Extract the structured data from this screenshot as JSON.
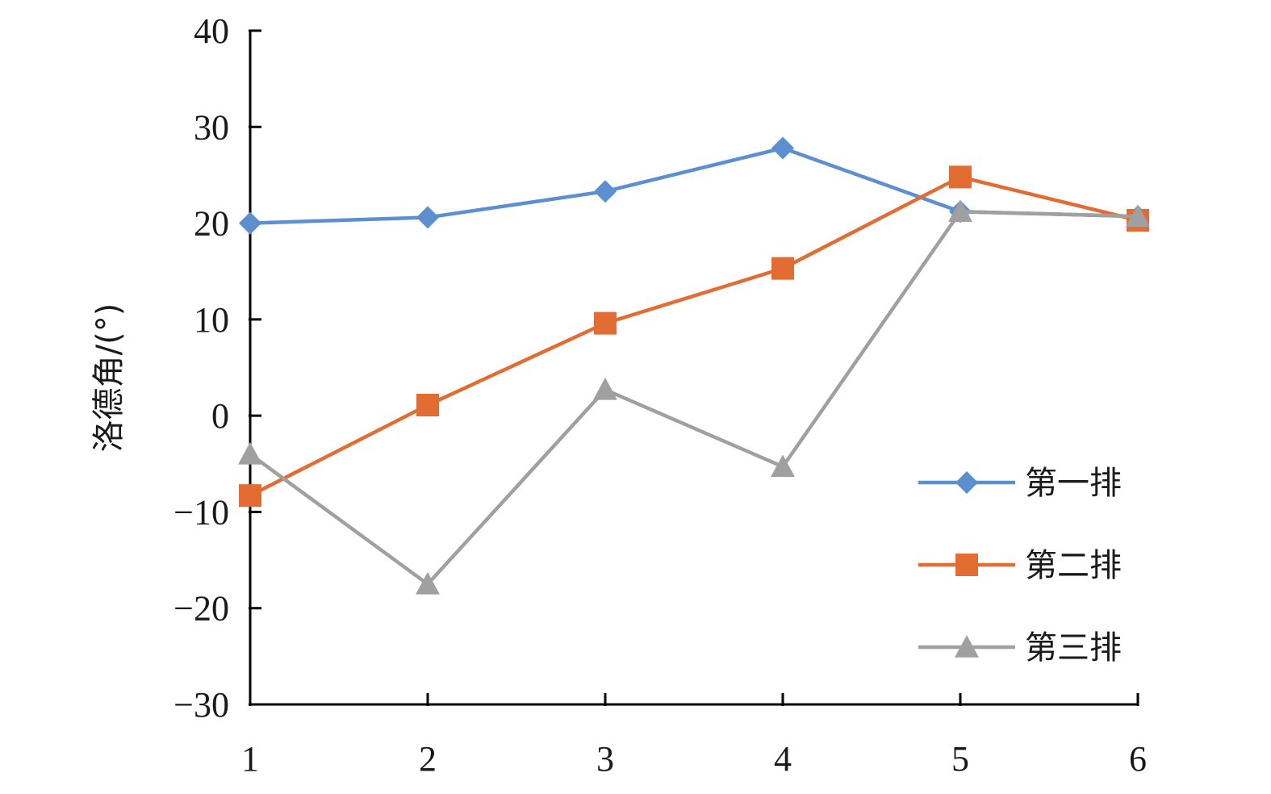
{
  "chart_data": {
    "type": "line",
    "x": [
      1,
      2,
      3,
      4,
      5,
      6
    ],
    "xlabel": "",
    "ylabel": "洛德角/(°)",
    "xlim": [
      1,
      6
    ],
    "ylim": [
      -30,
      40
    ],
    "yticks": [
      -30,
      -20,
      -10,
      0,
      10,
      20,
      30,
      40
    ],
    "ytick_labels": [
      "−30",
      "−20",
      "−10",
      "0",
      "10",
      "20",
      "30",
      "40"
    ],
    "xtick_labels": [
      "1",
      "2",
      "3",
      "4",
      "5",
      "6"
    ],
    "grid": false,
    "legend_position": "bottom-right",
    "series": [
      {
        "name": "第一排",
        "color": "#5b8fd0",
        "marker": "diamond",
        "values": [
          20.0,
          20.6,
          23.3,
          27.8,
          21.2,
          20.7
        ]
      },
      {
        "name": "第二排",
        "color": "#e36c32",
        "marker": "square",
        "values": [
          -8.3,
          1.1,
          9.6,
          15.3,
          24.8,
          20.3
        ]
      },
      {
        "name": "第三排",
        "color": "#a0a0a0",
        "marker": "triangle",
        "values": [
          -4.0,
          -17.5,
          2.7,
          -5.3,
          21.2,
          20.7
        ]
      }
    ]
  }
}
